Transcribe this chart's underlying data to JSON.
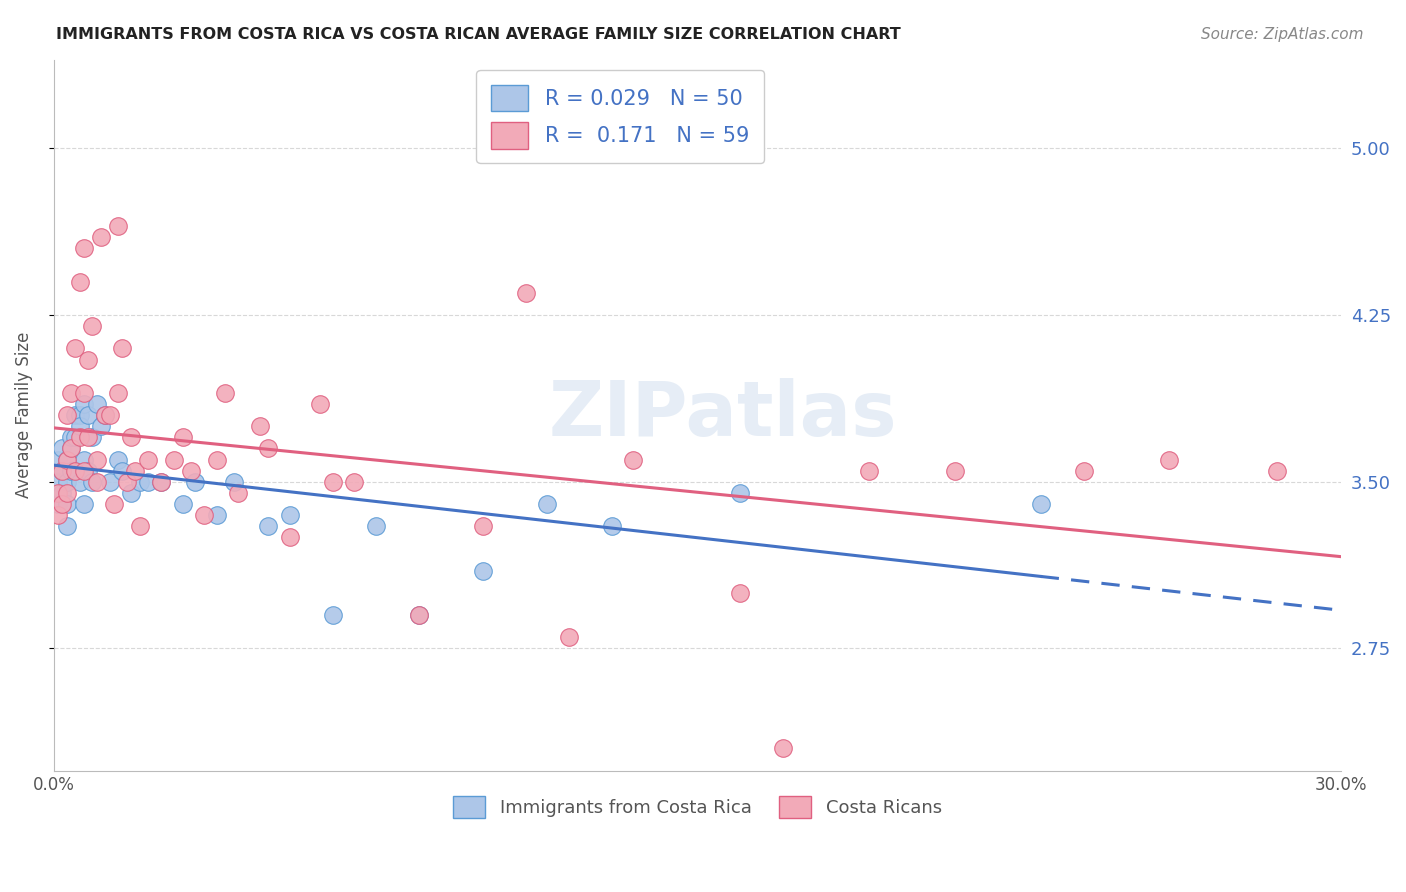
{
  "title": "IMMIGRANTS FROM COSTA RICA VS COSTA RICAN AVERAGE FAMILY SIZE CORRELATION CHART",
  "source": "Source: ZipAtlas.com",
  "ylabel": "Average Family Size",
  "xlim": [
    0.0,
    0.3
  ],
  "ylim": [
    2.2,
    5.4
  ],
  "yticks": [
    2.75,
    3.5,
    4.25,
    5.0
  ],
  "xticks": [
    0.0,
    0.05,
    0.1,
    0.15,
    0.2,
    0.25,
    0.3
  ],
  "xtick_labels": [
    "0.0%",
    "",
    "",
    "",
    "",
    "",
    "30.0%"
  ],
  "background_color": "#ffffff",
  "grid_color": "#d8d8d8",
  "blue_fill": "#adc6e8",
  "pink_fill": "#f2aab8",
  "blue_edge": "#5b9bd5",
  "pink_edge": "#e06080",
  "blue_line_color": "#4472c4",
  "pink_line_color": "#e06080",
  "right_axis_color": "#4472c4",
  "watermark": "ZIPatlas",
  "blue_scatter_x": [
    0.001,
    0.001,
    0.001,
    0.002,
    0.002,
    0.002,
    0.003,
    0.003,
    0.003,
    0.003,
    0.004,
    0.004,
    0.004,
    0.005,
    0.005,
    0.005,
    0.006,
    0.006,
    0.006,
    0.007,
    0.007,
    0.007,
    0.008,
    0.008,
    0.009,
    0.009,
    0.01,
    0.011,
    0.012,
    0.013,
    0.015,
    0.016,
    0.018,
    0.02,
    0.022,
    0.025,
    0.03,
    0.033,
    0.038,
    0.042,
    0.05,
    0.055,
    0.065,
    0.075,
    0.085,
    0.1,
    0.115,
    0.13,
    0.16,
    0.23
  ],
  "blue_scatter_y": [
    3.5,
    3.6,
    3.4,
    3.55,
    3.65,
    3.45,
    3.5,
    3.6,
    3.4,
    3.3,
    3.55,
    3.65,
    3.7,
    3.8,
    3.7,
    3.55,
    3.8,
    3.75,
    3.5,
    3.85,
    3.6,
    3.4,
    3.8,
    3.55,
    3.7,
    3.5,
    3.85,
    3.75,
    3.8,
    3.5,
    3.6,
    3.55,
    3.45,
    3.5,
    3.5,
    3.5,
    3.4,
    3.5,
    3.35,
    3.5,
    3.3,
    3.35,
    2.9,
    3.3,
    2.9,
    3.1,
    3.4,
    3.3,
    3.45,
    3.4
  ],
  "pink_scatter_x": [
    0.001,
    0.001,
    0.002,
    0.002,
    0.003,
    0.003,
    0.003,
    0.004,
    0.004,
    0.005,
    0.005,
    0.006,
    0.006,
    0.007,
    0.007,
    0.007,
    0.008,
    0.008,
    0.009,
    0.01,
    0.01,
    0.011,
    0.012,
    0.013,
    0.014,
    0.015,
    0.015,
    0.016,
    0.017,
    0.018,
    0.019,
    0.02,
    0.022,
    0.025,
    0.028,
    0.03,
    0.032,
    0.035,
    0.038,
    0.04,
    0.043,
    0.048,
    0.05,
    0.055,
    0.062,
    0.065,
    0.07,
    0.085,
    0.1,
    0.11,
    0.12,
    0.135,
    0.16,
    0.17,
    0.19,
    0.21,
    0.24,
    0.26,
    0.285
  ],
  "pink_scatter_y": [
    3.45,
    3.35,
    3.55,
    3.4,
    3.8,
    3.6,
    3.45,
    3.9,
    3.65,
    4.1,
    3.55,
    4.4,
    3.7,
    4.55,
    3.9,
    3.55,
    4.05,
    3.7,
    4.2,
    3.5,
    3.6,
    4.6,
    3.8,
    3.8,
    3.4,
    4.65,
    3.9,
    4.1,
    3.5,
    3.7,
    3.55,
    3.3,
    3.6,
    3.5,
    3.6,
    3.7,
    3.55,
    3.35,
    3.6,
    3.9,
    3.45,
    3.75,
    3.65,
    3.25,
    3.85,
    3.5,
    3.5,
    2.9,
    3.3,
    4.35,
    2.8,
    3.6,
    3.0,
    2.3,
    3.55,
    3.55,
    3.55,
    3.6,
    3.55
  ]
}
